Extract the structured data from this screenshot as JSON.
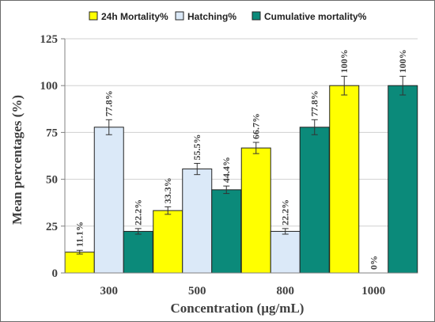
{
  "chart_data": {
    "type": "bar",
    "title": "",
    "xlabel": "Concentration (µg/mL)",
    "ylabel": "Mean percentages (%)",
    "categories": [
      "300",
      "500",
      "800",
      "1000"
    ],
    "ylim": [
      0,
      125
    ],
    "yticks": [
      "0",
      "25",
      "50",
      "75",
      "100",
      "125"
    ],
    "grid": true,
    "legend_position": "top",
    "series": [
      {
        "name": "24h Mortality%",
        "color": "#ffff00",
        "values": [
          11.1,
          33.3,
          66.7,
          100
        ],
        "errors": [
          1,
          2,
          3,
          5
        ],
        "labels": [
          "11.1%",
          "33.3%",
          "66.7%",
          "100%"
        ]
      },
      {
        "name": "Hatching%",
        "color": "#dbe9f8",
        "values": [
          77.8,
          55.5,
          22.2,
          0
        ],
        "errors": [
          4,
          3,
          1.5,
          0
        ],
        "labels": [
          "77.8%",
          "55.5%",
          "22.2%",
          "0%"
        ]
      },
      {
        "name": "Cumulative  mortality%",
        "color": "#0b8a7a",
        "values": [
          22.2,
          44.4,
          77.8,
          100
        ],
        "errors": [
          1.5,
          2,
          4,
          5
        ],
        "labels": [
          "22.2%",
          "44.4%",
          "77.8%",
          "100%"
        ]
      }
    ]
  }
}
